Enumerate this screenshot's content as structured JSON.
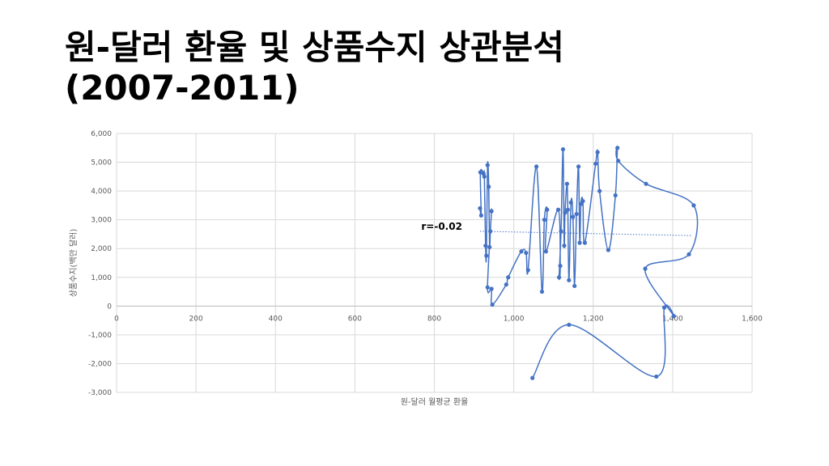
{
  "slide": {
    "title_line1": "원-달러 환율 및 상품수지 상관분석",
    "title_line2": "(2007-2011)"
  },
  "chart_data": {
    "type": "scatter",
    "subtype": "scatter-smooth-lines-with-markers",
    "xlabel": "원-달러 월평균 환율",
    "ylabel": "상품수지(백만 달러)",
    "xlim": [
      0,
      1600
    ],
    "ylim": [
      -3000,
      6000
    ],
    "x_ticks": [
      0,
      200,
      400,
      600,
      800,
      1000,
      1200,
      1400,
      1600
    ],
    "y_ticks": [
      -3000,
      -2000,
      -1000,
      0,
      1000,
      2000,
      3000,
      4000,
      5000,
      6000
    ],
    "x_tick_labels": [
      "0",
      "200",
      "400",
      "600",
      "800",
      "1,000",
      "1,200",
      "1,400",
      "1,600"
    ],
    "y_tick_labels": [
      "-3,000",
      "-2,000",
      "-1,000",
      "0",
      "1,000",
      "2,000",
      "3,000",
      "4,000",
      "5,000",
      "6,000"
    ],
    "grid": true,
    "series_color": "#4472c4",
    "trendline": {
      "type": "linear",
      "x": [
        915,
        1450
      ],
      "y": [
        2600,
        2450
      ],
      "label": "r=-0.02",
      "style": "dotted"
    },
    "points": [
      [
        915,
        3400
      ],
      [
        918,
        3150
      ],
      [
        916,
        4650
      ],
      [
        924,
        4600
      ],
      [
        926,
        4500
      ],
      [
        929,
        2100
      ],
      [
        931,
        1750
      ],
      [
        934,
        4900
      ],
      [
        937,
        4150
      ],
      [
        939,
        2050
      ],
      [
        941,
        2600
      ],
      [
        944,
        3300
      ],
      [
        934,
        650
      ],
      [
        944,
        600
      ],
      [
        946,
        50
      ],
      [
        981,
        750
      ],
      [
        986,
        1000
      ],
      [
        1019,
        1900
      ],
      [
        1031,
        1850
      ],
      [
        1036,
        1250
      ],
      [
        1057,
        4850
      ],
      [
        1071,
        500
      ],
      [
        1077,
        3000
      ],
      [
        1084,
        3350
      ],
      [
        1081,
        1900
      ],
      [
        1112,
        3350
      ],
      [
        1117,
        1400
      ],
      [
        1114,
        1000
      ],
      [
        1119,
        2600
      ],
      [
        1124,
        5450
      ],
      [
        1127,
        2100
      ],
      [
        1129,
        3250
      ],
      [
        1134,
        4250
      ],
      [
        1136,
        3350
      ],
      [
        1139,
        900
      ],
      [
        1144,
        3600
      ],
      [
        1149,
        3100
      ],
      [
        1153,
        700
      ],
      [
        1158,
        3200
      ],
      [
        1163,
        4850
      ],
      [
        1166,
        2200
      ],
      [
        1169,
        3550
      ],
      [
        1174,
        3650
      ],
      [
        1179,
        2200
      ],
      [
        1206,
        4950
      ],
      [
        1211,
        5350
      ],
      [
        1216,
        4000
      ],
      [
        1238,
        1950
      ],
      [
        1256,
        3850
      ],
      [
        1261,
        5500
      ],
      [
        1263,
        5050
      ],
      [
        1333,
        4250
      ],
      [
        1453,
        3500
      ],
      [
        1441,
        1800
      ],
      [
        1331,
        1300
      ],
      [
        1403,
        -350
      ],
      [
        1379,
        -50
      ],
      [
        1359,
        -2450
      ],
      [
        1139,
        -650
      ],
      [
        1047,
        -2500
      ]
    ]
  }
}
